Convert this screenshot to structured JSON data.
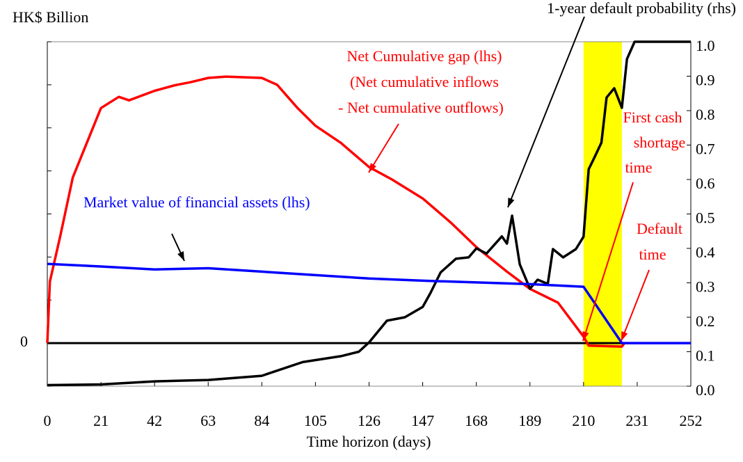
{
  "chart_data": {
    "type": "line",
    "y_axis_label": "HK$ Billion",
    "x_axis_label": "Time horizon (days)",
    "xlim": [
      0,
      252
    ],
    "xticks": [
      0,
      21,
      42,
      63,
      84,
      105,
      126,
      147,
      168,
      189,
      210,
      231,
      252
    ],
    "ylim": [
      -1,
      7
    ],
    "yticks": [
      0
    ],
    "yminorticks": [
      -1,
      1,
      2,
      3,
      4,
      5,
      6,
      7
    ],
    "y2lim": [
      0,
      1
    ],
    "y2ticks": [
      {
        "value": 0,
        "label": "0.0"
      },
      0.1,
      0.2,
      0.3,
      0.4,
      0.5,
      0.6,
      0.7,
      0.8,
      0.9,
      {
        "value": 1,
        "label": "1.0"
      }
    ],
    "shaded_region": {
      "x": [
        210,
        225
      ],
      "color": "#ffff00"
    },
    "series": [
      {
        "name": "Net Cumulative gap (lhs)",
        "color": "#ff0000",
        "axis": "y",
        "x": [
          0,
          1,
          5,
          10,
          21,
          28,
          32,
          42,
          50,
          56,
          63,
          70,
          84,
          90,
          98,
          105,
          115,
          126,
          135,
          147,
          158,
          168,
          180,
          189,
          200,
          210,
          212,
          225,
          226
        ],
        "values": [
          0,
          1.43,
          2.47,
          3.85,
          5.46,
          5.72,
          5.64,
          5.86,
          5.99,
          6.06,
          6.16,
          6.19,
          6.16,
          6.0,
          5.46,
          5.05,
          4.65,
          4.09,
          3.8,
          3.36,
          2.8,
          2.23,
          1.66,
          1.26,
          0.94,
          0.15,
          -0.06,
          -0.08,
          0
        ]
      },
      {
        "name": "Market value of financial assets (lhs)",
        "color": "#0000ff",
        "axis": "y",
        "x": [
          0,
          21,
          42,
          63,
          84,
          105,
          126,
          147,
          168,
          189,
          210,
          225,
          252
        ],
        "values": [
          1.84,
          1.78,
          1.71,
          1.74,
          1.66,
          1.58,
          1.5,
          1.45,
          1.41,
          1.37,
          1.31,
          0,
          0
        ]
      },
      {
        "name": "1-year default probability (rhs)",
        "color": "#000000",
        "axis": "y2",
        "x": [
          0,
          21,
          42,
          63,
          84,
          100,
          115,
          122,
          126,
          133,
          140,
          147,
          150,
          154,
          160,
          165,
          168,
          172,
          178,
          180,
          182,
          185,
          189,
          192,
          196,
          198,
          202,
          207,
          210,
          212,
          214,
          217,
          219,
          222,
          225,
          227,
          230,
          252
        ],
        "values": [
          0.003,
          0.005,
          0.014,
          0.018,
          0.03,
          0.07,
          0.087,
          0.1,
          0.127,
          0.19,
          0.2,
          0.23,
          0.27,
          0.33,
          0.37,
          0.374,
          0.4,
          0.385,
          0.435,
          0.414,
          0.495,
          0.354,
          0.283,
          0.309,
          0.297,
          0.398,
          0.374,
          0.398,
          0.434,
          0.63,
          0.66,
          0.707,
          0.838,
          0.865,
          0.808,
          0.95,
          1.0,
          1.0
        ]
      }
    ],
    "annotations": {
      "gap": [
        "Net Cumulative gap (lhs)",
        "(Net cumulative inflows",
        "- Net cumulative outflows)"
      ],
      "market": [
        "Market value of financial assets (lhs)"
      ],
      "prob": [
        "1-year default probability (rhs)"
      ],
      "shortage": [
        "First cash",
        "shortage",
        "time"
      ],
      "default": [
        "Default",
        "time"
      ]
    }
  }
}
